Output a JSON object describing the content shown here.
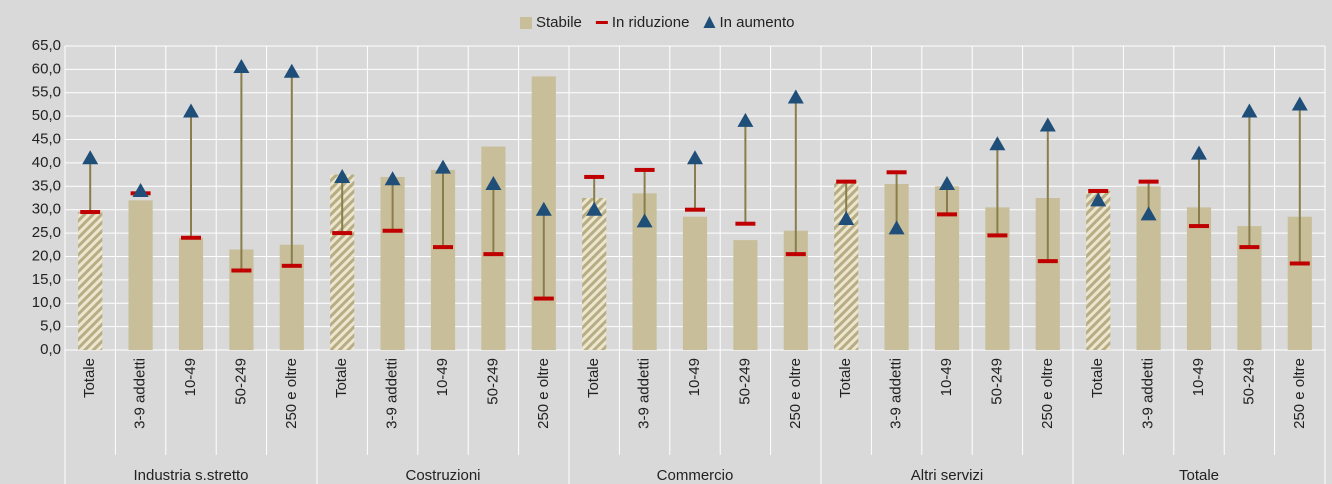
{
  "chart_data": {
    "type": "range",
    "categories": [
      "Totale",
      "3-9 addetti",
      "10-49",
      "50-249",
      "250 e oltre",
      "Totale",
      "3-9 addetti",
      "10-49",
      "50-249",
      "250 e oltre",
      "Totale",
      "3-9 addetti",
      "10-49",
      "50-249",
      "250 e oltre",
      "Totale",
      "3-9 addetti",
      "10-49",
      "50-249",
      "250 e oltre",
      "Totale",
      "3-9 addetti",
      "10-49",
      "50-249",
      "250 e oltre"
    ],
    "groups": [
      "Industria s.stretto",
      "Costruzioni",
      "Commercio",
      "Altri servizi",
      "Totale"
    ],
    "series": [
      {
        "name": "Stabile",
        "color": "#c8bf9a",
        "values": [
          29.5,
          32,
          24,
          21.5,
          22.5,
          37.5,
          37,
          38.5,
          43.5,
          58.5,
          32.5,
          33.5,
          28.5,
          23.5,
          25.5,
          36,
          35.5,
          35,
          30.5,
          32.5,
          34,
          35,
          30.5,
          26.5,
          28.5
        ]
      },
      {
        "name": "In riduzione",
        "color": "#c00000",
        "values": [
          29.5,
          33.5,
          24,
          17,
          18,
          25,
          25.5,
          22,
          20.5,
          11,
          37,
          38.5,
          30,
          27,
          20.5,
          36,
          38,
          29,
          24.5,
          19,
          34,
          36,
          26.5,
          22,
          18.5
        ]
      },
      {
        "name": "In aumento",
        "color": "#1f4e79",
        "values": [
          41,
          34,
          51,
          60.5,
          59.5,
          37,
          36.5,
          39,
          35.5,
          30,
          30,
          27.5,
          41,
          49,
          54,
          28,
          26,
          35.5,
          44,
          48,
          32,
          29,
          42,
          51,
          52.5
        ]
      }
    ],
    "ylim": [
      0,
      65
    ],
    "yticks": [
      {
        "value": 0,
        "label": "0,0"
      },
      {
        "value": 5,
        "label": "5,0"
      },
      {
        "value": 10,
        "label": "10,0"
      },
      {
        "value": 15,
        "label": "15,0"
      },
      {
        "value": 20,
        "label": "20,0"
      },
      {
        "value": 25,
        "label": "25,0"
      },
      {
        "value": 30,
        "label": "30,0"
      },
      {
        "value": 35,
        "label": "35,0"
      },
      {
        "value": 40,
        "label": "40,0"
      },
      {
        "value": 45,
        "label": "45,0"
      },
      {
        "value": 50,
        "label": "50,0"
      },
      {
        "value": 55,
        "label": "55,0"
      },
      {
        "value": 60,
        "label": "60,0"
      },
      {
        "value": 65,
        "label": "65,0"
      }
    ],
    "grid": true
  }
}
